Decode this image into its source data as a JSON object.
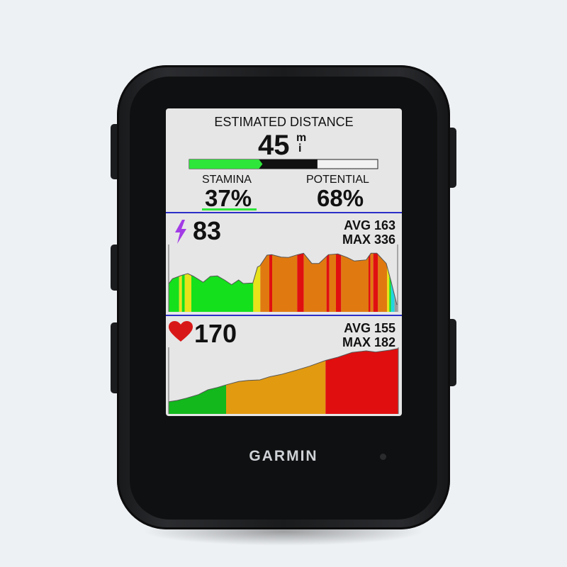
{
  "brand": "GARMIN",
  "estimated_distance": {
    "label": "ESTIMATED DISTANCE",
    "value": "45",
    "unit_top": "m",
    "unit_bottom": "i",
    "bar": {
      "stamina_fraction": 0.37,
      "potential_fraction": 0.68,
      "stamina_color": "#2ee53a",
      "potential_color": "#111111",
      "empty_color": "#f2f2f2"
    }
  },
  "stamina": {
    "label": "STAMINA",
    "value": "37%",
    "underline_color": "#2ee53a"
  },
  "potential": {
    "label": "POTENTIAL",
    "value": "68%"
  },
  "power": {
    "icon": "lightning-bolt-icon",
    "icon_color": "#a23be6",
    "value": "83",
    "avg": "AVG 163",
    "max": "MAX 336"
  },
  "heart_rate": {
    "icon": "heart-icon",
    "icon_color": "#d81818",
    "value": "170",
    "avg": "AVG 155",
    "max": "MAX 182"
  },
  "zone_colors": {
    "gray": "#9a9a9a",
    "cyan": "#22d4e0",
    "green": "#14e01c",
    "yellow": "#e8e21a",
    "orange": "#e07a10",
    "red": "#e01010",
    "hr_green": "#12b81c",
    "hr_orange": "#e29a10",
    "hr_red": "#e00e0e"
  },
  "divider_color": "#2b2fc8"
}
